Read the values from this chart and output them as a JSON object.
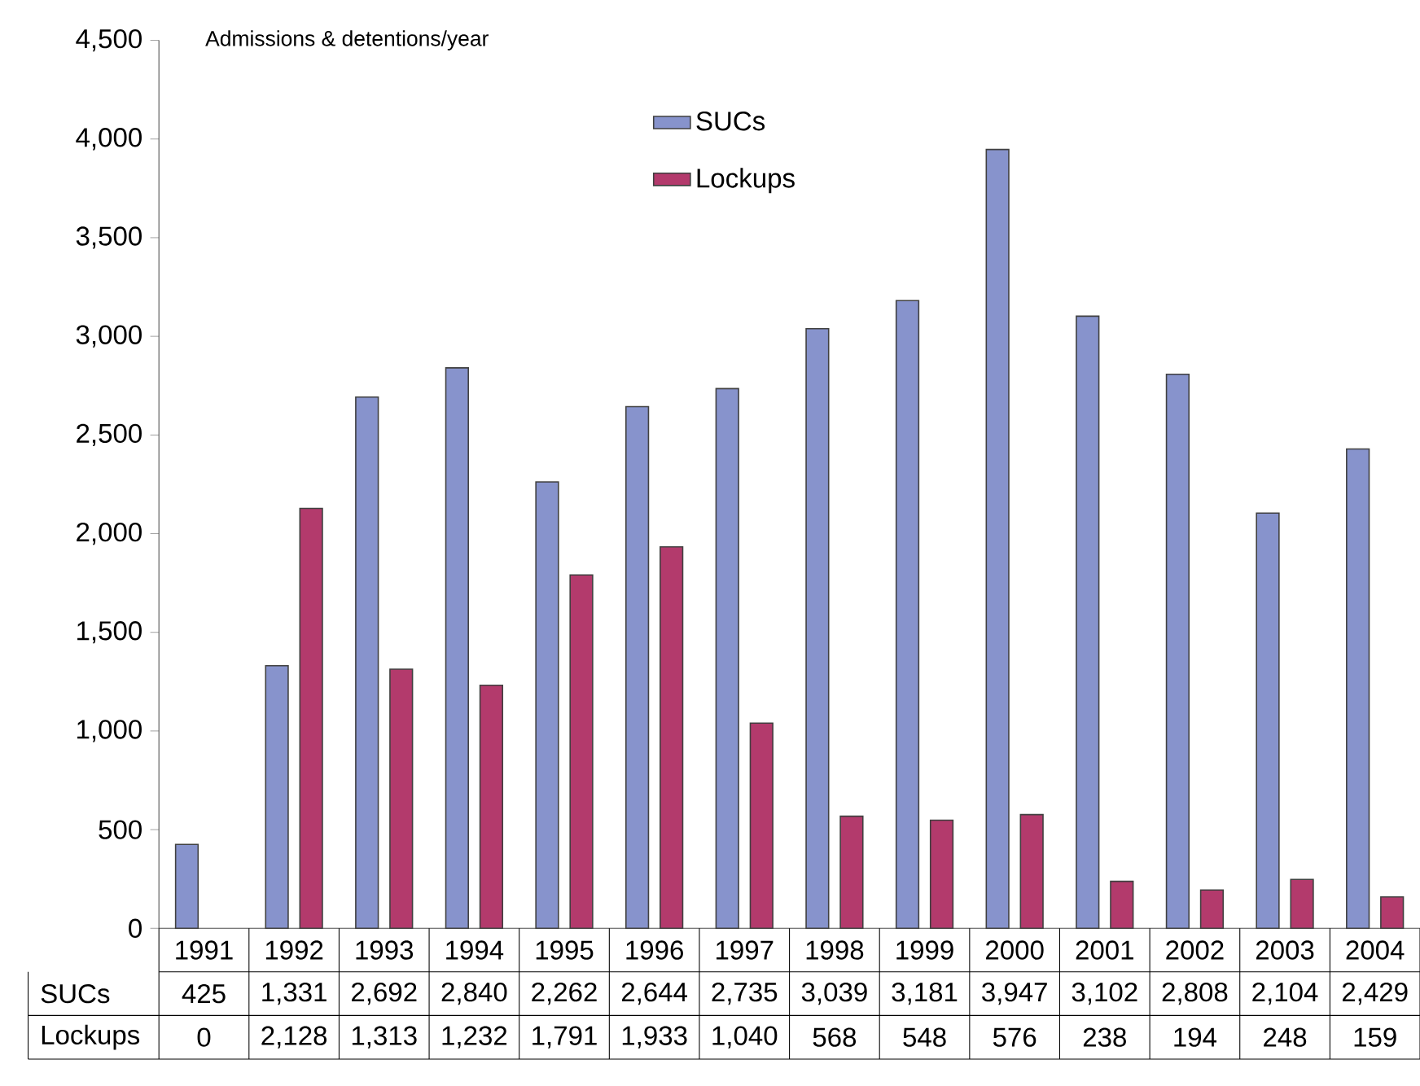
{
  "chart_data": {
    "type": "bar",
    "ylabel": "Admissions & detentions/year",
    "categories": [
      "1991",
      "1992",
      "1993",
      "1994",
      "1995",
      "1996",
      "1997",
      "1998",
      "1999",
      "2000",
      "2001",
      "2002",
      "2003",
      "2004"
    ],
    "series": [
      {
        "name": "SUCs",
        "color": "#8793cc",
        "values": [
          425,
          1331,
          2692,
          2840,
          2262,
          2644,
          2735,
          3039,
          3181,
          3947,
          3102,
          2808,
          2104,
          2429
        ],
        "value_labels": [
          "425",
          "1,331",
          "2,692",
          "2,840",
          "2,262",
          "2,644",
          "2,735",
          "3,039",
          "3,181",
          "3,947",
          "3,102",
          "2,808",
          "2,104",
          "2,429"
        ]
      },
      {
        "name": "Lockups",
        "color": "#b33a6c",
        "values": [
          0,
          2128,
          1313,
          1232,
          1791,
          1933,
          1040,
          568,
          548,
          576,
          238,
          194,
          248,
          159
        ],
        "value_labels": [
          "0",
          "2,128",
          "1,313",
          "1,232",
          "1,791",
          "1,933",
          "1,040",
          "568",
          "548",
          "576",
          "238",
          "194",
          "248",
          "159"
        ]
      }
    ],
    "ylim": [
      0,
      4500
    ],
    "yticks": [
      0,
      500,
      {
        "value": 1000,
        "label": "1,000"
      },
      {
        "value": 1500,
        "label": "1,500"
      },
      {
        "value": 2000,
        "label": "2,000"
      },
      {
        "value": 2500,
        "label": "2,500"
      },
      {
        "value": 3000,
        "label": "3,000"
      },
      {
        "value": 3500,
        "label": "3,500"
      },
      {
        "value": 4000,
        "label": "4,000"
      },
      {
        "value": 4500,
        "label": "4,500"
      }
    ],
    "legend": "top",
    "grid": false
  }
}
